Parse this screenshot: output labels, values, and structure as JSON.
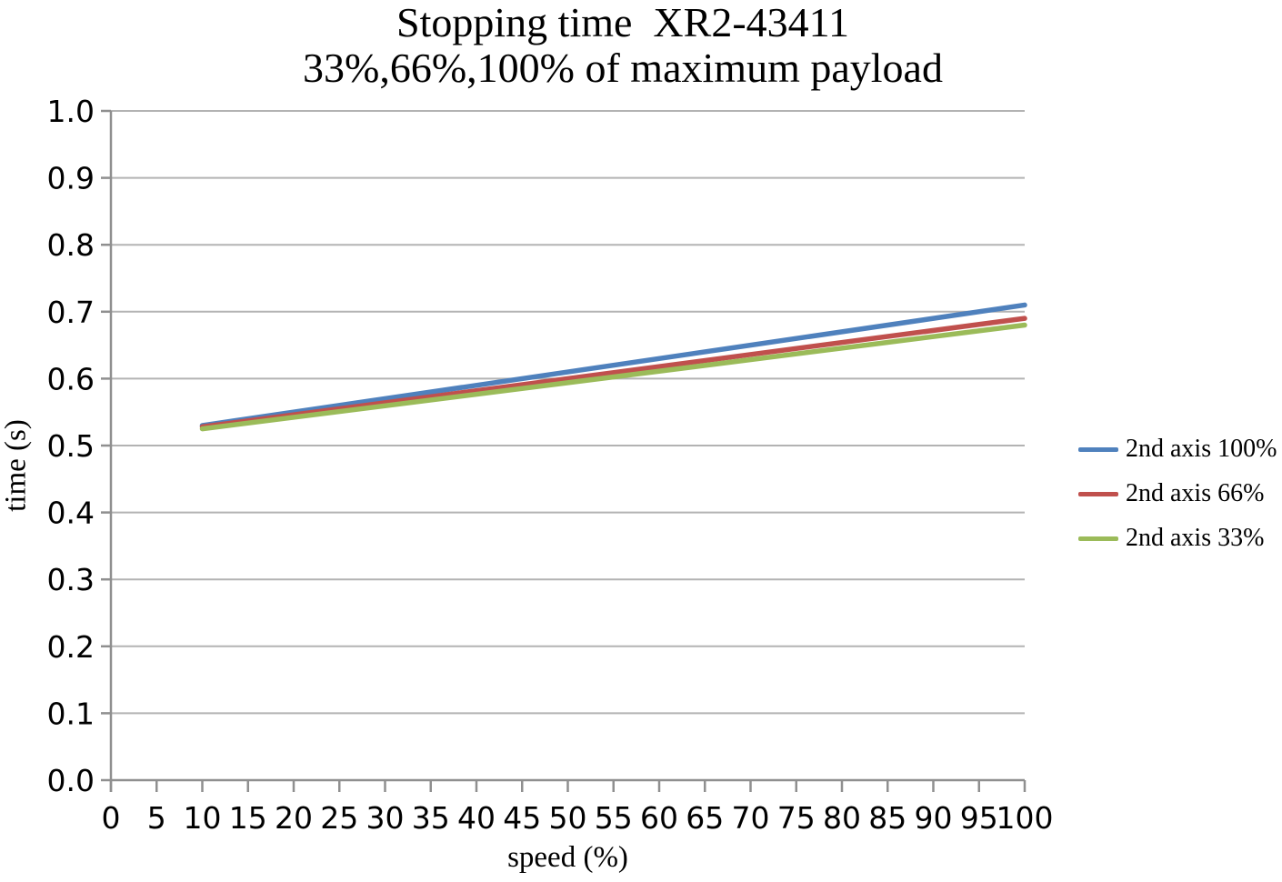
{
  "chart_data": {
    "type": "line",
    "title": "Stopping time  XR2-43411",
    "subtitle": "33%,66%,100% of maximum payload",
    "xlabel": "speed (%)",
    "ylabel": "time (s)",
    "x_axis": {
      "min": 0,
      "max": 100,
      "tick_step": 5,
      "decimals": 0
    },
    "y_axis": {
      "min": 0.0,
      "max": 1.0,
      "tick_step": 0.1,
      "decimals": 1
    },
    "grid": "horizontal-only",
    "legend_position": "right",
    "series": [
      {
        "name": "2nd axis 100%",
        "color": "#4F81BD",
        "points": [
          [
            10,
            0.53
          ],
          [
            100,
            0.71
          ]
        ]
      },
      {
        "name": "2nd axis 66%",
        "color": "#C0504D",
        "points": [
          [
            10,
            0.528
          ],
          [
            100,
            0.69
          ]
        ]
      },
      {
        "name": "2nd axis 33%",
        "color": "#9BBB59",
        "points": [
          [
            10,
            0.525
          ],
          [
            100,
            0.68
          ]
        ]
      }
    ],
    "colors": {
      "axis": "#8f8f8f",
      "gridline": "#b3b3b3",
      "text": "#000000",
      "background": "#ffffff"
    }
  }
}
